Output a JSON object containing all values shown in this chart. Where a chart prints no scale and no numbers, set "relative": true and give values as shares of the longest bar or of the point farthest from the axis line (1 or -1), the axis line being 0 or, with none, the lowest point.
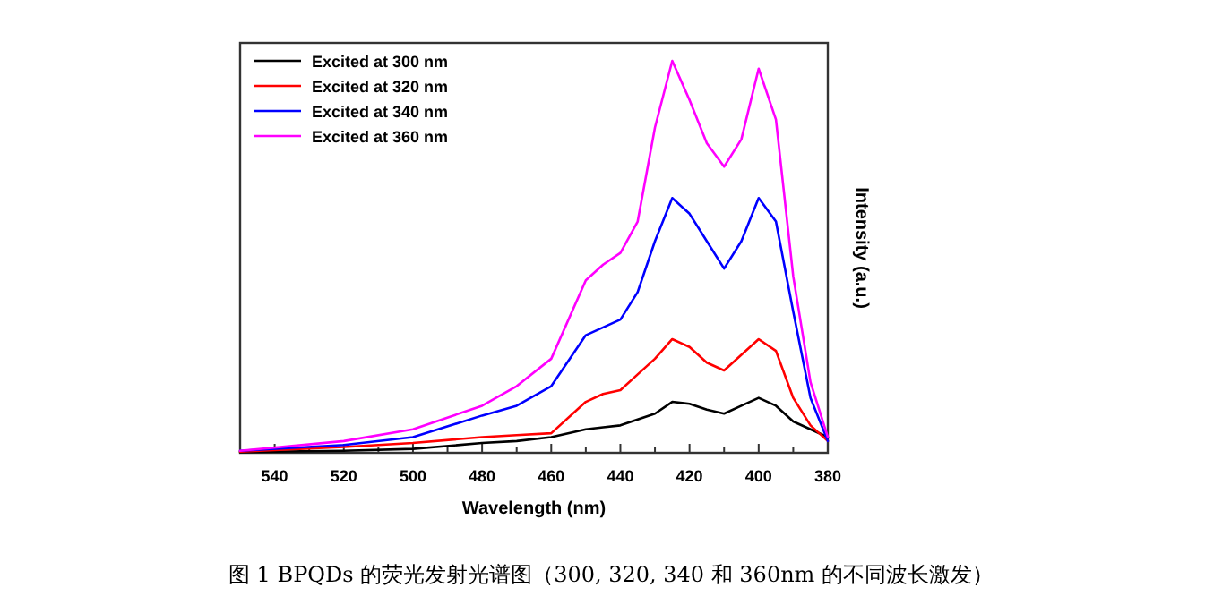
{
  "chart_data": {
    "type": "line",
    "relative": true,
    "xlabel": "Wavelength (nm)",
    "ylabel": "Intensity (a.u.)",
    "annotations": [
      "图 1 BPQDs 的荧光发射光谱图（300, 320, 340 和 360nm 的不同波长激发）"
    ],
    "xlim": [
      550,
      380
    ],
    "xticks": [
      540,
      {
        "value": 530,
        "label": null
      },
      520,
      {
        "value": 510,
        "label": null
      },
      500,
      {
        "value": 490,
        "label": null
      },
      480,
      {
        "value": 470,
        "label": null
      },
      460,
      {
        "value": 450,
        "label": null
      },
      440,
      {
        "value": 430,
        "label": null
      },
      420,
      {
        "value": 410,
        "label": null
      },
      400,
      {
        "value": 390,
        "label": null
      },
      380
    ],
    "legend": "top left",
    "x": [
      550,
      520,
      500,
      480,
      470,
      460,
      450,
      445,
      440,
      435,
      430,
      425,
      420,
      415,
      410,
      405,
      400,
      395,
      390,
      385,
      380
    ],
    "series": [
      {
        "name": "Excited at 300 nm",
        "color": "#000000",
        "values": [
          0.002,
          0.005,
          0.01,
          0.025,
          0.03,
          0.04,
          0.06,
          0.065,
          0.07,
          0.085,
          0.1,
          0.13,
          0.125,
          0.11,
          0.1,
          0.12,
          0.14,
          0.12,
          0.08,
          0.06,
          0.04
        ]
      },
      {
        "name": "Excited at 320 nm",
        "color": "#ff0000",
        "values": [
          0.003,
          0.015,
          0.025,
          0.04,
          0.045,
          0.05,
          0.13,
          0.15,
          0.16,
          0.2,
          0.24,
          0.29,
          0.27,
          0.23,
          0.21,
          0.25,
          0.29,
          0.26,
          0.14,
          0.07,
          0.03
        ]
      },
      {
        "name": "Excited at 340 nm",
        "color": "#0000ff",
        "values": [
          0.005,
          0.02,
          0.04,
          0.095,
          0.12,
          0.17,
          0.3,
          0.32,
          0.34,
          0.41,
          0.54,
          0.65,
          0.61,
          0.54,
          0.47,
          0.54,
          0.65,
          0.59,
          0.36,
          0.14,
          0.03
        ]
      },
      {
        "name": "Excited at 360 nm",
        "color": "#ff00ff",
        "values": [
          0.005,
          0.03,
          0.06,
          0.12,
          0.17,
          0.24,
          0.44,
          0.48,
          0.51,
          0.59,
          0.83,
          1.0,
          0.9,
          0.79,
          0.73,
          0.8,
          0.98,
          0.85,
          0.45,
          0.18,
          0.04
        ]
      }
    ]
  }
}
